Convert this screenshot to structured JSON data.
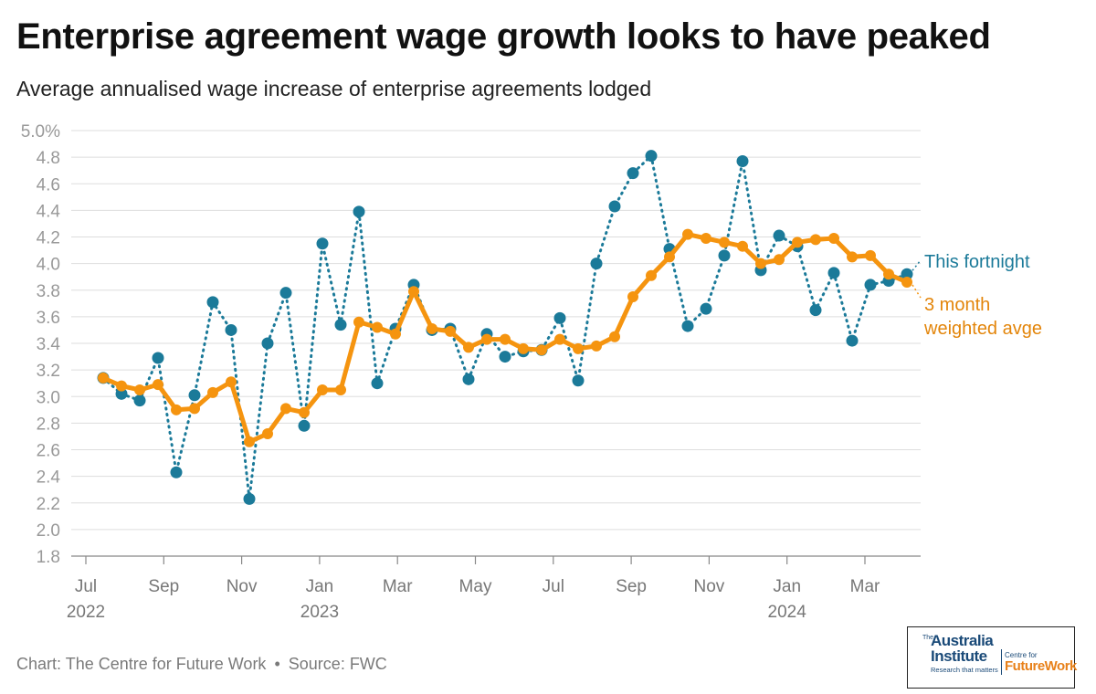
{
  "title": "Enterprise agreement wage growth looks to have peaked",
  "subtitle": "Average annualised wage increase of enterprise agreements lodged",
  "footer": {
    "chart_credit": "Chart: The Centre for Future Work",
    "separator": "•",
    "source": "Source: FWC"
  },
  "logo": {
    "the": "The",
    "australia": "Australia",
    "institute": "Institute",
    "tagline": "Research that matters",
    "centre_for": "Centre for",
    "future": "Future",
    "work": "Work"
  },
  "colors": {
    "fortnight": "#1b7a99",
    "weighted": "#f5940f",
    "grid": "#dddddd",
    "axis_text": "#999999"
  },
  "chart_data": {
    "type": "line",
    "title": "Enterprise agreement wage growth looks to have peaked",
    "subtitle": "Average annualised wage increase of enterprise agreements lodged",
    "xlabel": "",
    "ylabel": "",
    "ylim": [
      1.8,
      5.0
    ],
    "y_ticks": [
      "5.0%",
      "4.8",
      "4.6",
      "4.4",
      "4.2",
      "4.0",
      "3.8",
      "3.6",
      "3.4",
      "3.2",
      "3.0",
      "2.8",
      "2.6",
      "2.4",
      "2.2",
      "2.0",
      "1.8"
    ],
    "x_ticks": [
      {
        "month": "Jul",
        "year": "2022"
      },
      {
        "month": "Sep",
        "year": ""
      },
      {
        "month": "Nov",
        "year": ""
      },
      {
        "month": "Jan",
        "year": "2023"
      },
      {
        "month": "Mar",
        "year": ""
      },
      {
        "month": "May",
        "year": ""
      },
      {
        "month": "Jul",
        "year": ""
      },
      {
        "month": "Sep",
        "year": ""
      },
      {
        "month": "Nov",
        "year": ""
      },
      {
        "month": "Jan",
        "year": "2024"
      },
      {
        "month": "Mar",
        "year": ""
      }
    ],
    "series": [
      {
        "name": "This fortnight",
        "label": "This fortnight",
        "style": "dotted",
        "values": [
          3.14,
          3.02,
          2.97,
          3.29,
          2.43,
          3.01,
          3.71,
          3.5,
          2.23,
          3.4,
          3.78,
          2.78,
          4.15,
          3.54,
          4.39,
          3.1,
          3.51,
          3.84,
          3.5,
          3.51,
          3.13,
          3.47,
          3.3,
          3.34,
          3.35,
          3.59,
          3.12,
          4.0,
          4.43,
          4.68,
          4.81,
          4.11,
          3.53,
          3.66,
          4.06,
          4.77,
          3.95,
          4.21,
          4.13,
          3.65,
          3.93,
          3.42,
          3.84,
          3.87,
          3.92
        ]
      },
      {
        "name": "3 month weighted avge",
        "label_lines": [
          "3 month",
          "weighted avge"
        ],
        "style": "solid",
        "values": [
          3.14,
          3.08,
          3.05,
          3.09,
          2.9,
          2.91,
          3.03,
          3.11,
          2.66,
          2.72,
          2.91,
          2.88,
          3.05,
          3.05,
          3.56,
          3.52,
          3.47,
          3.79,
          3.51,
          3.49,
          3.37,
          3.43,
          3.43,
          3.36,
          3.35,
          3.43,
          3.36,
          3.38,
          3.45,
          3.75,
          3.91,
          4.05,
          4.22,
          4.19,
          4.16,
          4.13,
          4.0,
          4.03,
          4.16,
          4.18,
          4.19,
          4.05,
          4.06,
          3.92,
          3.86
        ]
      }
    ]
  }
}
